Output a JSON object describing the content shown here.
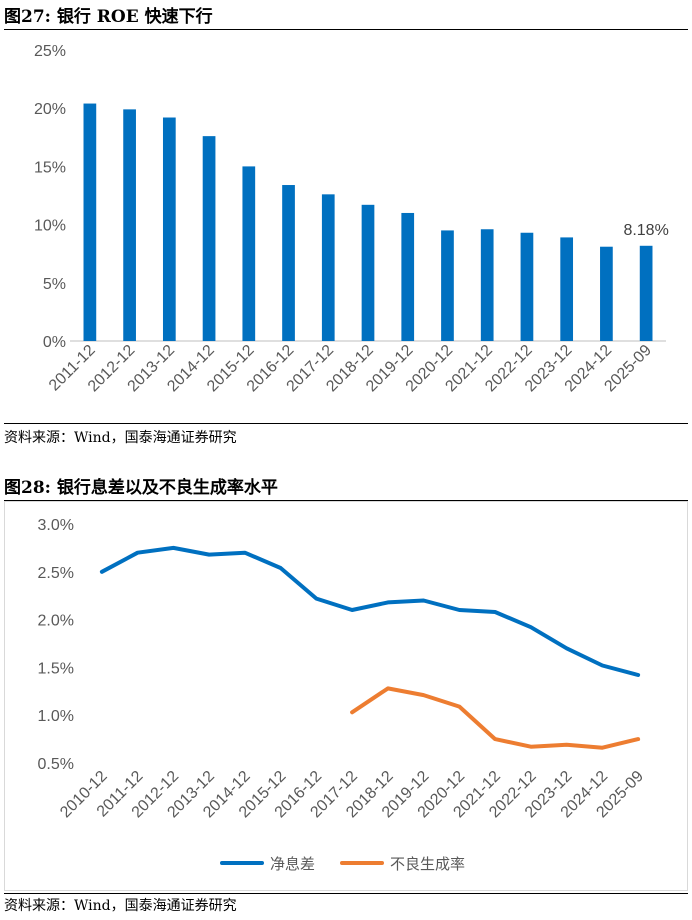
{
  "figures": [
    {
      "title": "图27:  银行 ROE 快速下行",
      "source": "资料来源：Wind，国泰海通证券研究",
      "chart_data": {
        "type": "bar",
        "title": "",
        "xlabel": "",
        "ylabel": "",
        "categories": [
          "2011-12",
          "2012-12",
          "2013-12",
          "2014-12",
          "2015-12",
          "2016-12",
          "2017-12",
          "2018-12",
          "2019-12",
          "2020-12",
          "2021-12",
          "2022-12",
          "2023-12",
          "2024-12",
          "2025-09"
        ],
        "series": [
          {
            "name": "ROE",
            "color": "#0070C0",
            "values": [
              20.4,
              19.9,
              19.2,
              17.6,
              15.0,
              13.4,
              12.6,
              11.7,
              11.0,
              9.5,
              9.6,
              9.3,
              8.9,
              8.1,
              8.18
            ]
          }
        ],
        "ylim": [
          0,
          25
        ],
        "yticks": [
          0,
          5,
          10,
          15,
          20,
          25
        ],
        "ytick_labels": [
          "0%",
          "5%",
          "10%",
          "15%",
          "20%",
          "25%"
        ],
        "annotation": {
          "index": 14,
          "text": "8.18%"
        },
        "grid": false
      }
    },
    {
      "title": "图28:  银行息差以及不良生成率水平",
      "source": "资料来源：Wind，国泰海通证券研究",
      "chart_data": {
        "type": "line",
        "title": "",
        "xlabel": "",
        "ylabel": "",
        "categories": [
          "2010-12",
          "2011-12",
          "2012-12",
          "2013-12",
          "2014-12",
          "2015-12",
          "2016-12",
          "2017-12",
          "2018-12",
          "2019-12",
          "2020-12",
          "2021-12",
          "2022-12",
          "2023-12",
          "2024-12",
          "2025-09"
        ],
        "series": [
          {
            "name": "净息差",
            "color": "#0070C0",
            "values": [
              2.5,
              2.7,
              2.75,
              2.68,
              2.7,
              2.54,
              2.22,
              2.1,
              2.18,
              2.2,
              2.1,
              2.08,
              1.92,
              1.7,
              1.52,
              1.42
            ]
          },
          {
            "name": "不良生成率",
            "color": "#ED7D31",
            "values": [
              null,
              null,
              null,
              null,
              null,
              null,
              null,
              1.03,
              1.28,
              1.21,
              1.09,
              0.75,
              0.67,
              0.69,
              0.66,
              0.75
            ]
          }
        ],
        "ylim": [
          0.5,
          3.0
        ],
        "yticks": [
          0.5,
          1.0,
          1.5,
          2.0,
          2.5,
          3.0
        ],
        "ytick_labels": [
          "0.5%",
          "1.0%",
          "1.5%",
          "2.0%",
          "2.5%",
          "3.0%"
        ],
        "legend_position": "bottom-center",
        "grid": false
      }
    }
  ]
}
